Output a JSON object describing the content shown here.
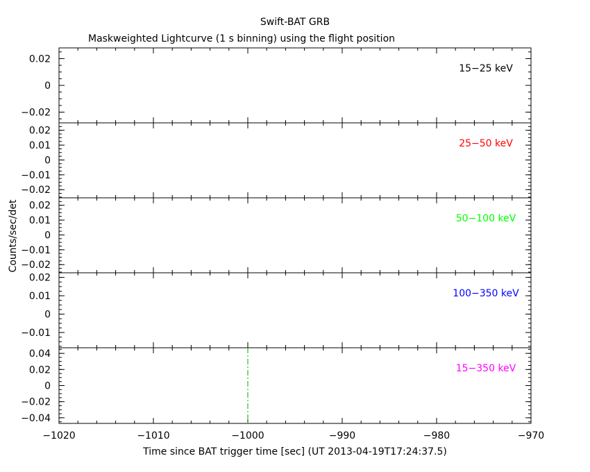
{
  "chart_data": {
    "type": "line",
    "title": "Swift-BAT GRB",
    "subtitle": "Maskweighted Lightcurve (1 s binning) using the flight position",
    "xlabel": "Time since BAT trigger time [sec] (UT 2013-04-19T17:24:37.5)",
    "ylabel": "Counts/sec/det",
    "xlim": [
      -1020,
      -970
    ],
    "x_ticks": [
      -1020,
      -1010,
      -1000,
      -990,
      -980,
      -970
    ],
    "x_tick_labels": [
      "−1020",
      "−1010",
      "−1000",
      "−990",
      "−980",
      "−970"
    ],
    "trigger_marker_x": -1000,
    "panels": [
      {
        "label": "15−25 keV",
        "label_color": "#000000",
        "ylim": [
          -0.028,
          0.028
        ],
        "y_ticks": [
          0.02,
          0,
          -0.02
        ],
        "y_tick_labels": [
          "0.02",
          "0",
          "−0.02"
        ],
        "minor_step": 0.005,
        "show_trigger": false
      },
      {
        "label": "25−50 keV",
        "label_color": "#ff0000",
        "ylim": [
          -0.0255,
          0.025
        ],
        "y_ticks": [
          0.02,
          0.01,
          0,
          -0.01,
          -0.02
        ],
        "y_tick_labels": [
          "0.02",
          "0.01",
          "0",
          "−0.01",
          "−0.02"
        ],
        "minor_step": 0.0025,
        "show_trigger": false
      },
      {
        "label": "50−100 keV",
        "label_color": "#00ff00",
        "ylim": [
          -0.0255,
          0.025
        ],
        "y_ticks": [
          0.02,
          0.01,
          0,
          -0.01,
          -0.02
        ],
        "y_tick_labels": [
          "0.02",
          "0.01",
          "0",
          "−0.01",
          "−0.02"
        ],
        "minor_step": 0.0025,
        "show_trigger": false
      },
      {
        "label": "100−350 keV",
        "label_color": "#0000ff",
        "ylim": [
          -0.0183,
          0.0225
        ],
        "y_ticks": [
          0.02,
          0.01,
          0,
          -0.01
        ],
        "y_tick_labels": [
          "0.02",
          "0.01",
          "0",
          "−0.01"
        ],
        "minor_step": 0.0025,
        "show_trigger": false
      },
      {
        "label": "15−350 keV",
        "label_color": "#ff00ff",
        "ylim": [
          -0.047,
          0.047
        ],
        "y_ticks": [
          0.04,
          0.02,
          0,
          -0.02,
          -0.04
        ],
        "y_tick_labels": [
          "0.04",
          "0.02",
          "0",
          "−0.02",
          "−0.04"
        ],
        "minor_step": 0.005,
        "show_trigger": true
      }
    ],
    "trigger_line_color": "#00aa00",
    "grid": false,
    "series": []
  }
}
